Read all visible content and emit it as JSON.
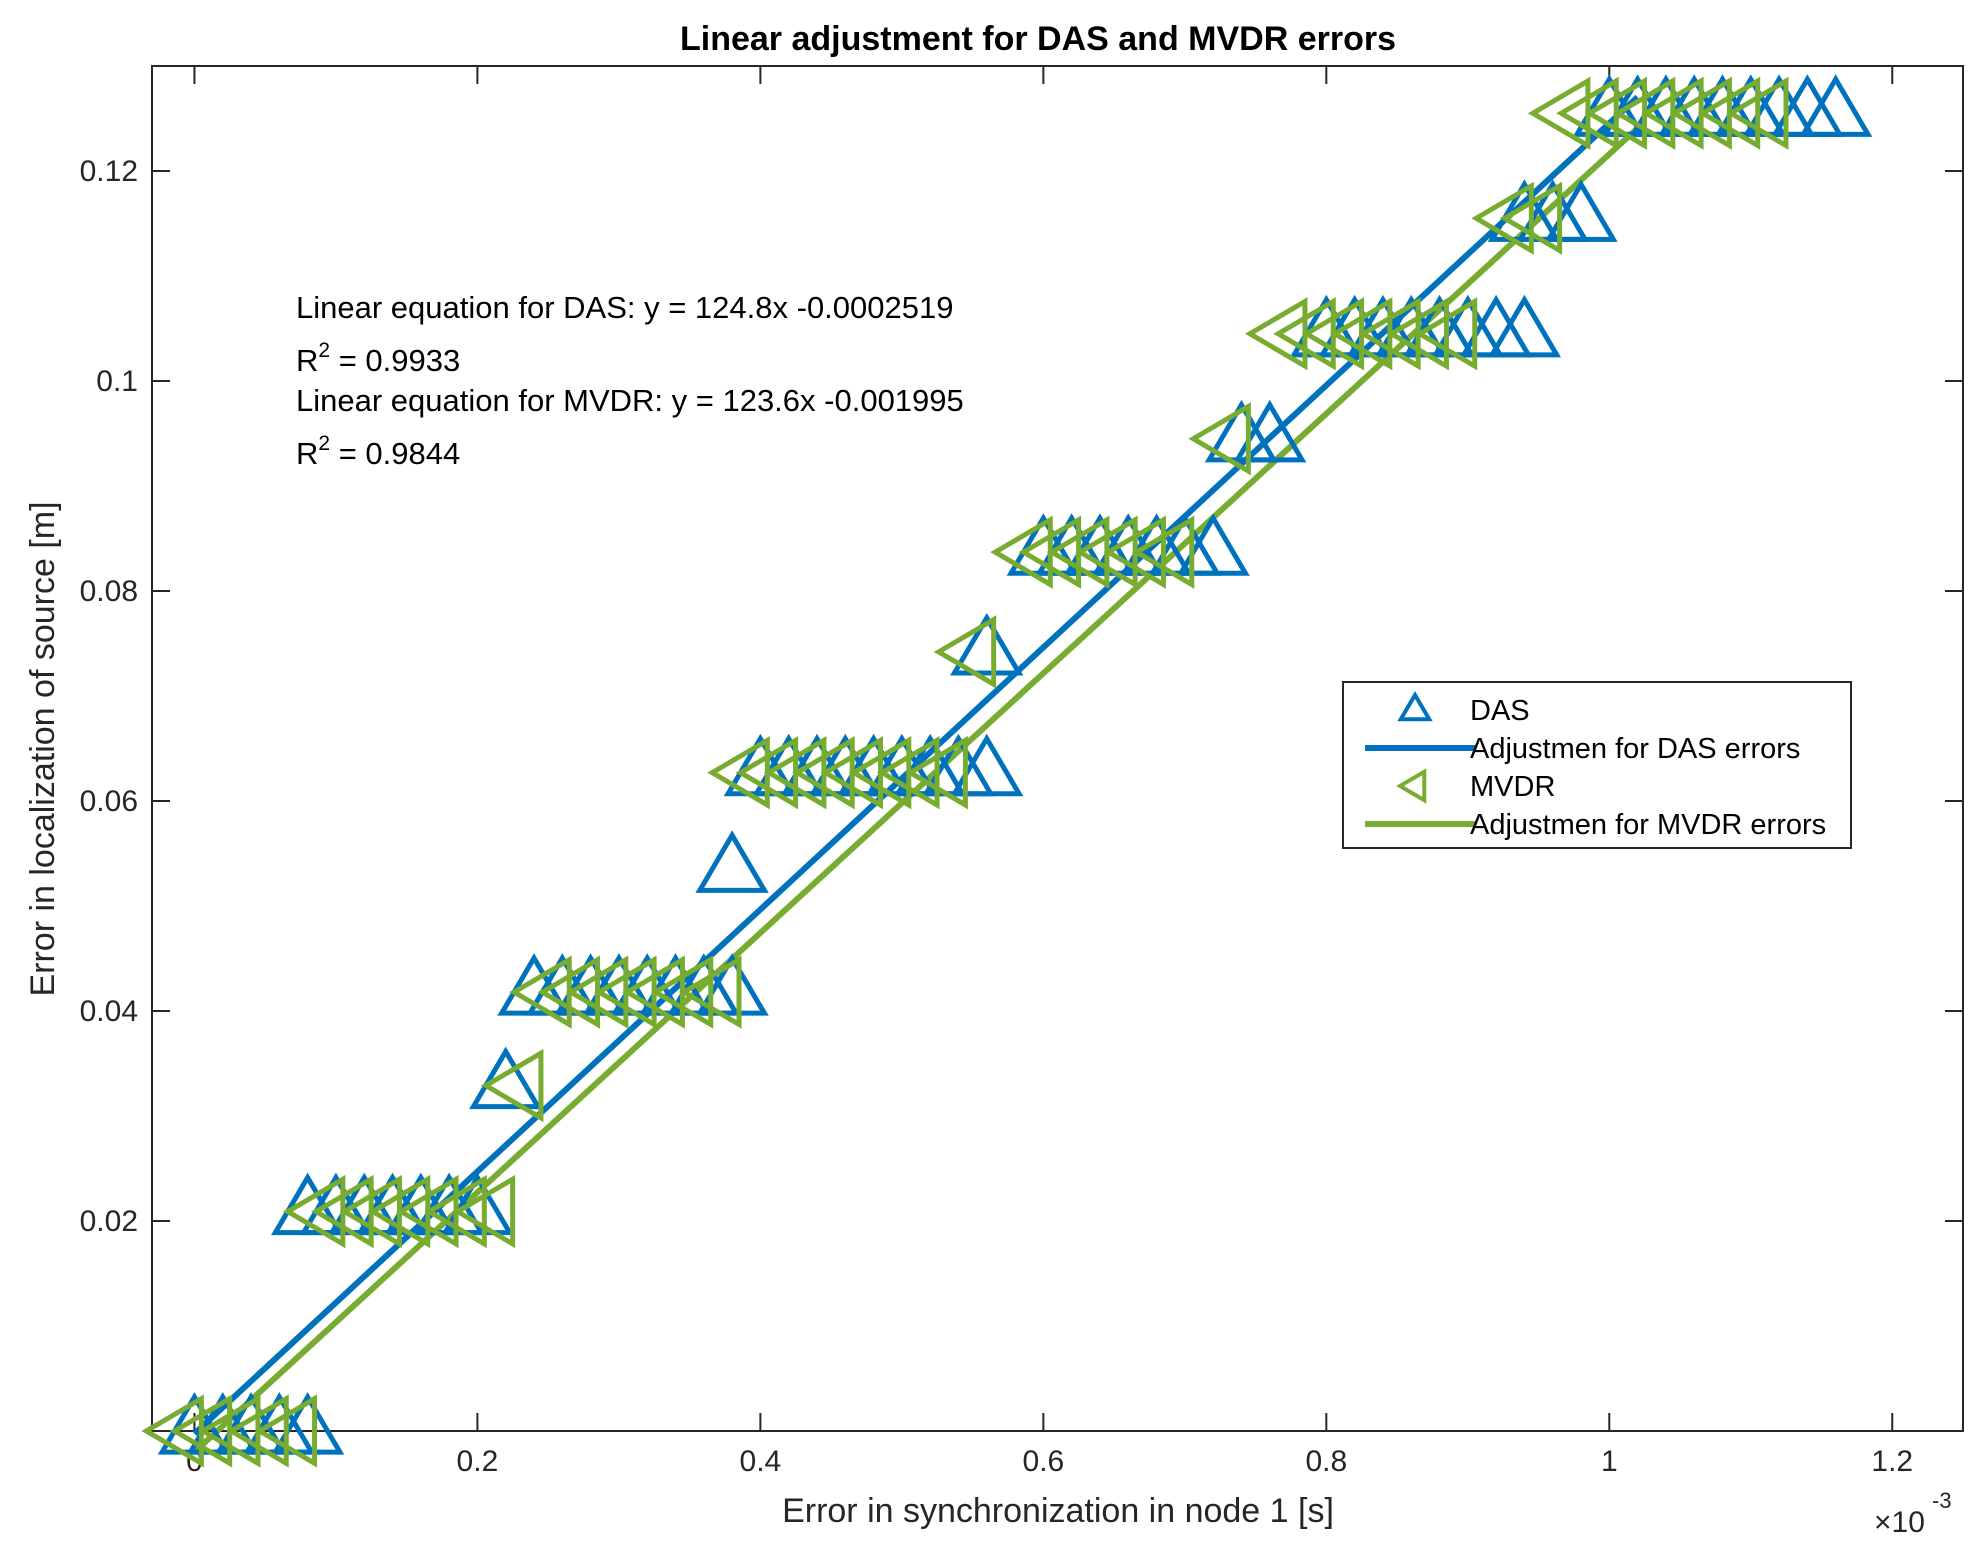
{
  "chart_data": {
    "type": "scatter",
    "title": "Linear adjustment for DAS and MVDR errors",
    "xlabel": "Error in synchronization in node 1 [s]",
    "ylabel": "Error in localization of source [m]",
    "x_exponent_label": "×10",
    "x_exponent_power": "-3",
    "xlim": [
      -3e-05,
      0.00125
    ],
    "ylim": [
      0,
      0.13
    ],
    "x_ticks": [
      0,
      0.0002,
      0.0004,
      0.0006,
      0.0008,
      0.001,
      0.0012
    ],
    "x_tick_labels": [
      "0",
      "0.2",
      "0.4",
      "0.6",
      "0.8",
      "1",
      "1.2"
    ],
    "y_ticks": [
      0.02,
      0.04,
      0.06,
      0.08,
      0.1,
      0.12
    ],
    "y_tick_labels": [
      "0.02",
      "0.04",
      "0.06",
      "0.08",
      "0.1",
      "0.12"
    ],
    "grid": false,
    "legend_position": "right-middle",
    "annotations": {
      "das_equation": "Linear equation for DAS: y = 124.8x -0.0002519",
      "das_r2_prefix": "R",
      "das_r2_sup": "2",
      "das_r2_value": " = 0.9933",
      "mvdr_equation": "Linear equation for MVDR: y = 123.6x -0.001995",
      "mvdr_r2_prefix": "R",
      "mvdr_r2_sup": "2",
      "mvdr_r2_value": " = 0.9844"
    },
    "legend": [
      {
        "label": "DAS",
        "kind": "marker-up",
        "color": "#0072BD"
      },
      {
        "label": "Adjustmen for DAS errors",
        "kind": "line",
        "color": "#0072BD"
      },
      {
        "label": "MVDR",
        "kind": "marker-left",
        "color": "#77AC30"
      },
      {
        "label": "Adjustmen for MVDR errors",
        "kind": "line",
        "color": "#77AC30"
      }
    ],
    "series": [
      {
        "name": "DAS",
        "marker": "triangle-up",
        "color": "#0072BD",
        "points": [
          [
            0.0,
            0.0
          ],
          [
            2e-05,
            0.0
          ],
          [
            4e-05,
            0.0
          ],
          [
            6e-05,
            0.0
          ],
          [
            8e-05,
            0.0
          ],
          [
            8e-05,
            0.0209
          ],
          [
            0.0001,
            0.0209
          ],
          [
            0.00012,
            0.0209
          ],
          [
            0.00014,
            0.0209
          ],
          [
            0.00016,
            0.0209
          ],
          [
            0.00018,
            0.0209
          ],
          [
            0.0002,
            0.0209
          ],
          [
            0.00022,
            0.0329
          ],
          [
            0.00024,
            0.0418
          ],
          [
            0.00026,
            0.0418
          ],
          [
            0.00028,
            0.0418
          ],
          [
            0.0003,
            0.0418
          ],
          [
            0.00032,
            0.0418
          ],
          [
            0.00034,
            0.0418
          ],
          [
            0.00036,
            0.0418
          ],
          [
            0.00038,
            0.0418
          ],
          [
            0.00038,
            0.0535
          ],
          [
            0.0004,
            0.0627
          ],
          [
            0.00042,
            0.0627
          ],
          [
            0.00044,
            0.0627
          ],
          [
            0.00046,
            0.0627
          ],
          [
            0.00048,
            0.0627
          ],
          [
            0.0005,
            0.0627
          ],
          [
            0.00052,
            0.0627
          ],
          [
            0.00054,
            0.0627
          ],
          [
            0.00056,
            0.0627
          ],
          [
            0.00056,
            0.0742
          ],
          [
            0.0006,
            0.0837
          ],
          [
            0.00062,
            0.0837
          ],
          [
            0.00064,
            0.0837
          ],
          [
            0.00066,
            0.0837
          ],
          [
            0.00068,
            0.0837
          ],
          [
            0.0007,
            0.0837
          ],
          [
            0.00072,
            0.0837
          ],
          [
            0.00074,
            0.0945
          ],
          [
            0.00076,
            0.0945
          ],
          [
            0.0008,
            0.1045
          ],
          [
            0.00082,
            0.1045
          ],
          [
            0.00084,
            0.1045
          ],
          [
            0.00086,
            0.1045
          ],
          [
            0.00088,
            0.1045
          ],
          [
            0.0009,
            0.1045
          ],
          [
            0.00092,
            0.1045
          ],
          [
            0.00094,
            0.1045
          ],
          [
            0.00094,
            0.1155
          ],
          [
            0.00096,
            0.1155
          ],
          [
            0.00098,
            0.1155
          ],
          [
            0.001,
            0.1255
          ],
          [
            0.00102,
            0.1255
          ],
          [
            0.00104,
            0.1255
          ],
          [
            0.00106,
            0.1255
          ],
          [
            0.00108,
            0.1255
          ],
          [
            0.0011,
            0.1255
          ],
          [
            0.00112,
            0.1255
          ],
          [
            0.00114,
            0.1255
          ],
          [
            0.00116,
            0.1255
          ]
        ]
      },
      {
        "name": "Adjustmen for DAS errors",
        "kind": "line",
        "color": "#0072BD",
        "slope": 124.8,
        "intercept": -0.0002519,
        "x_range": [
          0,
          0.00102
        ]
      },
      {
        "name": "MVDR",
        "marker": "triangle-left",
        "color": "#77AC30",
        "points": [
          [
            -1e-05,
            0.0
          ],
          [
            1e-05,
            0.0
          ],
          [
            3e-05,
            0.0
          ],
          [
            5e-05,
            0.0
          ],
          [
            7e-05,
            0.0
          ],
          [
            9e-05,
            0.0209
          ],
          [
            0.00011,
            0.0209
          ],
          [
            0.00013,
            0.0209
          ],
          [
            0.00015,
            0.0209
          ],
          [
            0.00017,
            0.0209
          ],
          [
            0.00019,
            0.0209
          ],
          [
            0.00021,
            0.0209
          ],
          [
            0.00023,
            0.0329
          ],
          [
            0.00025,
            0.0418
          ],
          [
            0.00027,
            0.0418
          ],
          [
            0.00029,
            0.0418
          ],
          [
            0.00031,
            0.0418
          ],
          [
            0.00033,
            0.0418
          ],
          [
            0.00035,
            0.0418
          ],
          [
            0.00037,
            0.0418
          ],
          [
            0.00039,
            0.0627
          ],
          [
            0.00041,
            0.0627
          ],
          [
            0.00043,
            0.0627
          ],
          [
            0.00045,
            0.0627
          ],
          [
            0.00047,
            0.0627
          ],
          [
            0.00049,
            0.0627
          ],
          [
            0.00051,
            0.0627
          ],
          [
            0.00053,
            0.0627
          ],
          [
            0.00055,
            0.0742
          ],
          [
            0.00059,
            0.0837
          ],
          [
            0.00061,
            0.0837
          ],
          [
            0.00063,
            0.0837
          ],
          [
            0.00065,
            0.0837
          ],
          [
            0.00067,
            0.0837
          ],
          [
            0.00069,
            0.0837
          ],
          [
            0.00073,
            0.0945
          ],
          [
            0.00077,
            0.1045
          ],
          [
            0.00079,
            0.1045
          ],
          [
            0.00081,
            0.1045
          ],
          [
            0.00083,
            0.1045
          ],
          [
            0.00085,
            0.1045
          ],
          [
            0.00087,
            0.1045
          ],
          [
            0.00089,
            0.1045
          ],
          [
            0.00093,
            0.1155
          ],
          [
            0.00095,
            0.1155
          ],
          [
            0.00097,
            0.1255
          ],
          [
            0.00099,
            0.1255
          ],
          [
            0.00101,
            0.1255
          ],
          [
            0.00103,
            0.1255
          ],
          [
            0.00105,
            0.1255
          ],
          [
            0.00107,
            0.1255
          ],
          [
            0.00109,
            0.1255
          ],
          [
            0.00111,
            0.1255
          ]
        ]
      },
      {
        "name": "Adjustmen for MVDR errors",
        "kind": "line",
        "color": "#77AC30",
        "slope": 123.6,
        "intercept": -0.001995,
        "x_range": [
          0,
          0.00102
        ]
      }
    ]
  }
}
